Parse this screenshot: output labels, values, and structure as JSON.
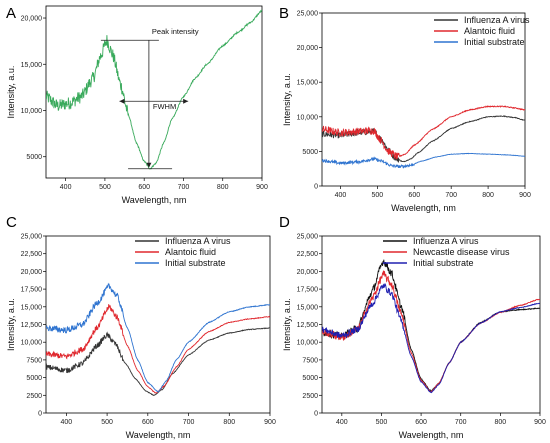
{
  "figure": {
    "colors": {
      "green": "#3aaa5c",
      "black": "#333333",
      "red": "#e0282e",
      "blue": "#2f74d0",
      "navy": "#2020b0"
    }
  },
  "chart_data": [
    {
      "type": "line",
      "panel_label": "A",
      "xlabel": "Wavelength, nm",
      "ylabel": "Intensity, a.u.",
      "xlim": [
        350,
        900
      ],
      "ylim": [
        2700,
        21300
      ],
      "xticks": [
        400,
        500,
        600,
        700,
        800,
        900
      ],
      "yticks": [
        5000,
        10000,
        15000,
        20000
      ],
      "ytick_labels": [
        "5000",
        "10,000",
        "15,000",
        "20,000"
      ],
      "annotations": {
        "peak_intensity": "Peak intensity",
        "fwhm": "FWHM"
      },
      "series": [
        {
          "color": "#3aaa5c",
          "noise": 700,
          "noise_end": 560,
          "points": [
            [
              350,
              11500
            ],
            [
              380,
              10500
            ],
            [
              410,
              10800
            ],
            [
              440,
              11500
            ],
            [
              470,
              13500
            ],
            [
              490,
              16000
            ],
            [
              505,
              17600
            ],
            [
              520,
              16000
            ],
            [
              540,
              12800
            ],
            [
              560,
              9500
            ],
            [
              580,
              6500
            ],
            [
              600,
              4500
            ],
            [
              615,
              3700
            ],
            [
              630,
              4300
            ],
            [
              650,
              6500
            ],
            [
              670,
              9000
            ],
            [
              700,
              11500
            ],
            [
              730,
              13500
            ],
            [
              760,
              15000
            ],
            [
              800,
              17000
            ],
            [
              840,
              18500
            ],
            [
              870,
              19500
            ],
            [
              900,
              20800
            ]
          ]
        }
      ]
    },
    {
      "type": "line",
      "panel_label": "B",
      "xlabel": "Wavelength, nm",
      "ylabel": "Intensity, a.u.",
      "xlim": [
        350,
        900
      ],
      "ylim": [
        0,
        25000
      ],
      "xticks": [
        400,
        500,
        600,
        700,
        800,
        900
      ],
      "yticks": [
        0,
        5000,
        10000,
        15000,
        20000,
        25000
      ],
      "ytick_labels": [
        "0",
        "5000",
        "10,000",
        "15,000",
        "20,000",
        "25,000"
      ],
      "legend": [
        "Influenza A virus",
        "Alantoic fluid",
        "Initial substrate"
      ],
      "series": [
        {
          "name": "Influenza A virus",
          "color": "#333333",
          "noise": 450,
          "noise_end": 560,
          "points": [
            [
              350,
              7500
            ],
            [
              400,
              7300
            ],
            [
              450,
              7700
            ],
            [
              490,
              7900
            ],
            [
              510,
              6800
            ],
            [
              530,
              5200
            ],
            [
              550,
              4000
            ],
            [
              570,
              3500
            ],
            [
              590,
              3900
            ],
            [
              610,
              4800
            ],
            [
              650,
              6500
            ],
            [
              700,
              8300
            ],
            [
              750,
              9300
            ],
            [
              800,
              10000
            ],
            [
              840,
              10100
            ],
            [
              870,
              9900
            ],
            [
              900,
              9500
            ]
          ]
        },
        {
          "name": "Alantoic fluid",
          "color": "#e0282e",
          "noise": 550,
          "noise_end": 560,
          "points": [
            [
              350,
              8200
            ],
            [
              400,
              7700
            ],
            [
              450,
              7900
            ],
            [
              490,
              8000
            ],
            [
              510,
              6600
            ],
            [
              530,
              5000
            ],
            [
              555,
              4200
            ],
            [
              575,
              4600
            ],
            [
              600,
              5900
            ],
            [
              650,
              8200
            ],
            [
              700,
              10000
            ],
            [
              750,
              11000
            ],
            [
              800,
              11500
            ],
            [
              840,
              11500
            ],
            [
              870,
              11300
            ],
            [
              900,
              11000
            ]
          ]
        },
        {
          "name": "Initial substrate",
          "color": "#2f74d0",
          "noise": 220,
          "noise_end": 600,
          "points": [
            [
              350,
              3700
            ],
            [
              400,
              3300
            ],
            [
              450,
              3500
            ],
            [
              490,
              3900
            ],
            [
              510,
              3600
            ],
            [
              540,
              2900
            ],
            [
              565,
              2800
            ],
            [
              590,
              3000
            ],
            [
              620,
              3600
            ],
            [
              660,
              4200
            ],
            [
              700,
              4600
            ],
            [
              750,
              4700
            ],
            [
              800,
              4600
            ],
            [
              850,
              4500
            ],
            [
              900,
              4300
            ]
          ]
        }
      ]
    },
    {
      "type": "line",
      "panel_label": "C",
      "xlabel": "Wavelength, nm",
      "ylabel": "Intensity, a.u.",
      "xlim": [
        350,
        900
      ],
      "ylim": [
        0,
        25000
      ],
      "xticks": [
        400,
        500,
        600,
        700,
        800,
        900
      ],
      "yticks": [
        0,
        2500,
        5000,
        7500,
        10000,
        12500,
        15000,
        17500,
        20000,
        22500,
        25000
      ],
      "ytick_labels": [
        "0",
        "2500",
        "5000",
        "7500",
        "10,000",
        "12,500",
        "15,000",
        "17,500",
        "20,000",
        "22,500",
        "25,000"
      ],
      "legend": [
        "Influenza A virus",
        "Alantoic fluid",
        "Initial substrate"
      ],
      "series": [
        {
          "name": "Influenza A virus",
          "color": "#333333",
          "noise": 380,
          "noise_end": 540,
          "points": [
            [
              350,
              6500
            ],
            [
              400,
              6000
            ],
            [
              440,
              7000
            ],
            [
              475,
              9500
            ],
            [
              500,
              11000
            ],
            [
              520,
              9800
            ],
            [
              545,
              7000
            ],
            [
              570,
              4800
            ],
            [
              595,
              3100
            ],
            [
              615,
              2500
            ],
            [
              635,
              3300
            ],
            [
              660,
              5500
            ],
            [
              700,
              8200
            ],
            [
              750,
              10300
            ],
            [
              800,
              11300
            ],
            [
              850,
              11800
            ],
            [
              900,
              12000
            ]
          ]
        },
        {
          "name": "Alantoic fluid",
          "color": "#e0282e",
          "noise": 420,
          "noise_end": 540,
          "points": [
            [
              350,
              8300
            ],
            [
              400,
              8000
            ],
            [
              440,
              9000
            ],
            [
              475,
              12000
            ],
            [
              505,
              15000
            ],
            [
              525,
              13500
            ],
            [
              550,
              9500
            ],
            [
              575,
              6000
            ],
            [
              600,
              3700
            ],
            [
              620,
              2800
            ],
            [
              640,
              3800
            ],
            [
              670,
              6500
            ],
            [
              700,
              9000
            ],
            [
              750,
              11500
            ],
            [
              800,
              12800
            ],
            [
              850,
              13300
            ],
            [
              900,
              13600
            ]
          ]
        },
        {
          "name": "Initial substrate",
          "color": "#2f74d0",
          "noise": 450,
          "noise_end": 540,
          "points": [
            [
              350,
              12000
            ],
            [
              400,
              11700
            ],
            [
              440,
              12500
            ],
            [
              475,
              15500
            ],
            [
              505,
              17900
            ],
            [
              525,
              16500
            ],
            [
              550,
              12000
            ],
            [
              575,
              7500
            ],
            [
              600,
              4300
            ],
            [
              625,
              3000
            ],
            [
              645,
              4500
            ],
            [
              670,
              7500
            ],
            [
              700,
              10000
            ],
            [
              750,
              12800
            ],
            [
              800,
              14300
            ],
            [
              850,
              15000
            ],
            [
              900,
              15300
            ]
          ]
        }
      ]
    },
    {
      "type": "line",
      "panel_label": "D",
      "xlabel": "Wavelength, nm",
      "ylabel": "Intensity, a.u.",
      "xlim": [
        350,
        900
      ],
      "ylim": [
        0,
        25000
      ],
      "xticks": [
        400,
        500,
        600,
        700,
        800,
        900
      ],
      "yticks": [
        0,
        2500,
        5000,
        7500,
        10000,
        12500,
        15000,
        17500,
        20000,
        22500,
        25000
      ],
      "ytick_labels": [
        "0",
        "2500",
        "5000",
        "7500",
        "10,000",
        "12,500",
        "15,000",
        "17,500",
        "20,000",
        "22,500",
        "25,000"
      ],
      "legend": [
        "Influenza A virus",
        "Newcastle disease virus",
        "Initial substrate"
      ],
      "series": [
        {
          "name": "Influenza A virus",
          "color": "#111111",
          "noise": 550,
          "noise_end": 560,
          "points": [
            [
              350,
              11500
            ],
            [
              400,
              10800
            ],
            [
              440,
              12000
            ],
            [
              475,
              17000
            ],
            [
              505,
              21500
            ],
            [
              525,
              19800
            ],
            [
              550,
              15000
            ],
            [
              575,
              9000
            ],
            [
              600,
              4800
            ],
            [
              625,
              3100
            ],
            [
              645,
              4200
            ],
            [
              670,
              7000
            ],
            [
              700,
              10000
            ],
            [
              750,
              12800
            ],
            [
              800,
              14300
            ],
            [
              850,
              14600
            ],
            [
              900,
              14800
            ]
          ]
        },
        {
          "name": "Newcastle disease virus",
          "color": "#e0282e",
          "noise": 550,
          "noise_end": 560,
          "points": [
            [
              350,
              11500
            ],
            [
              400,
              10700
            ],
            [
              440,
              11800
            ],
            [
              475,
              16000
            ],
            [
              505,
              19600
            ],
            [
              525,
              18200
            ],
            [
              550,
              14000
            ],
            [
              575,
              8500
            ],
            [
              600,
              4600
            ],
            [
              625,
              3000
            ],
            [
              645,
              4200
            ],
            [
              670,
              7000
            ],
            [
              700,
              10000
            ],
            [
              750,
              12700
            ],
            [
              800,
              14200
            ],
            [
              850,
              15200
            ],
            [
              900,
              16100
            ]
          ]
        },
        {
          "name": "Initial substrate",
          "color": "#2020b0",
          "noise": 450,
          "noise_end": 560,
          "points": [
            [
              350,
              11800
            ],
            [
              400,
              10900
            ],
            [
              440,
              11800
            ],
            [
              475,
              15300
            ],
            [
              505,
              18000
            ],
            [
              525,
              16900
            ],
            [
              550,
              13000
            ],
            [
              575,
              8000
            ],
            [
              600,
              4400
            ],
            [
              625,
              2900
            ],
            [
              645,
              4000
            ],
            [
              670,
              7000
            ],
            [
              700,
              10000
            ],
            [
              750,
              12700
            ],
            [
              800,
              14300
            ],
            [
              850,
              14900
            ],
            [
              900,
              15500
            ]
          ]
        }
      ]
    }
  ]
}
